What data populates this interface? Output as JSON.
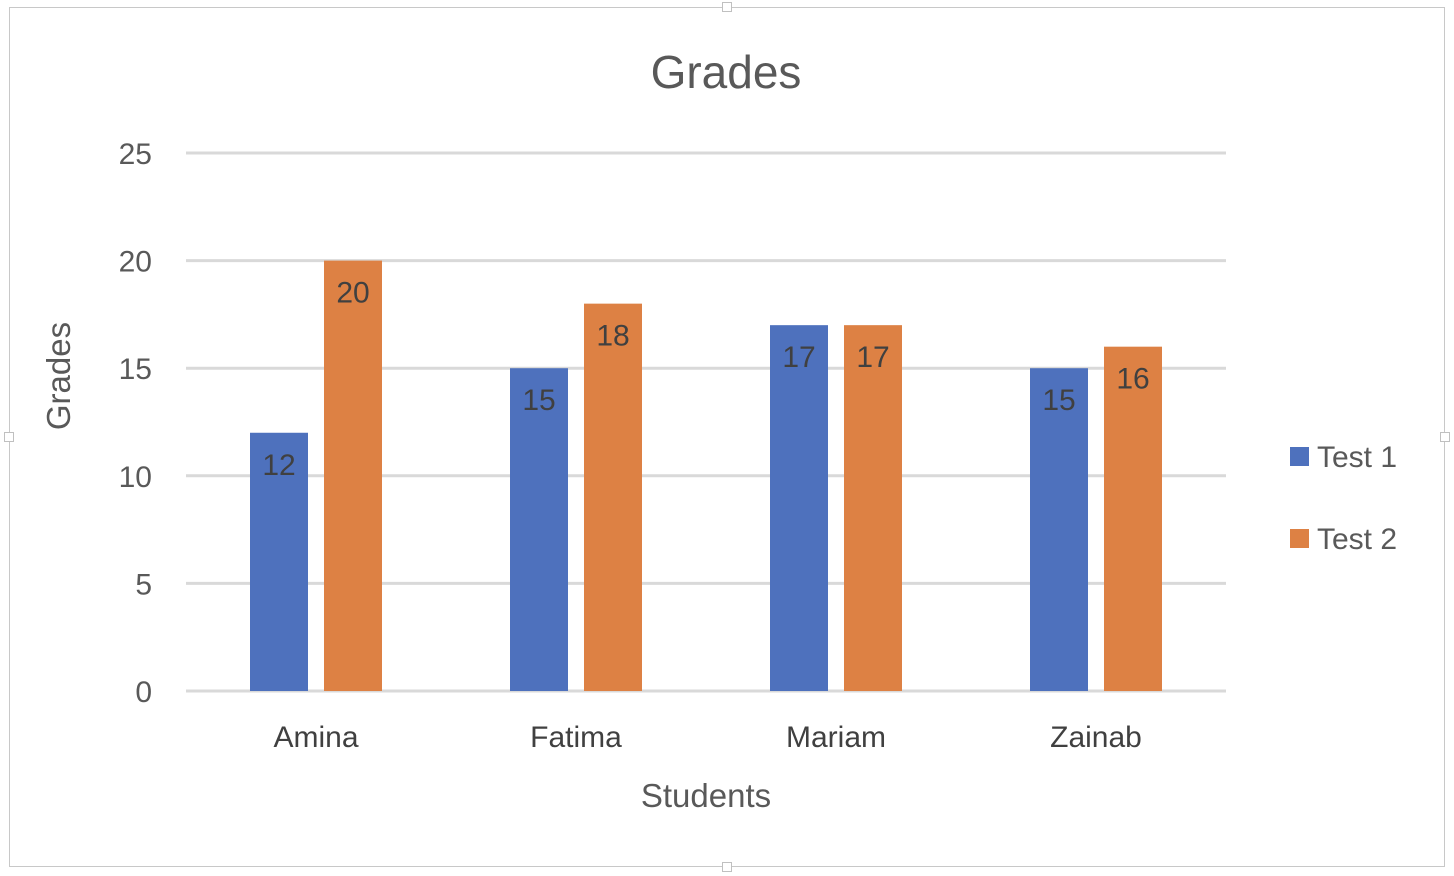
{
  "colors": {
    "test1": "#4e71bd",
    "test2": "#dd8144",
    "grid": "#d9d9d9",
    "text": "#595959",
    "data_label": "#404040"
  },
  "chart_data": {
    "type": "bar",
    "title": "Grades",
    "xlabel": "Students",
    "ylabel": "Grades",
    "categories": [
      "Amina",
      "Fatima",
      "Mariam",
      "Zainab"
    ],
    "series": [
      {
        "name": "Test 1",
        "values": [
          12,
          15,
          17,
          15
        ]
      },
      {
        "name": "Test 2",
        "values": [
          20,
          18,
          17,
          16
        ]
      }
    ],
    "ylim": [
      0,
      25
    ],
    "yticks": [
      0,
      5,
      10,
      15,
      20,
      25
    ],
    "grid": true,
    "legend_position": "right",
    "data_labels": true
  }
}
